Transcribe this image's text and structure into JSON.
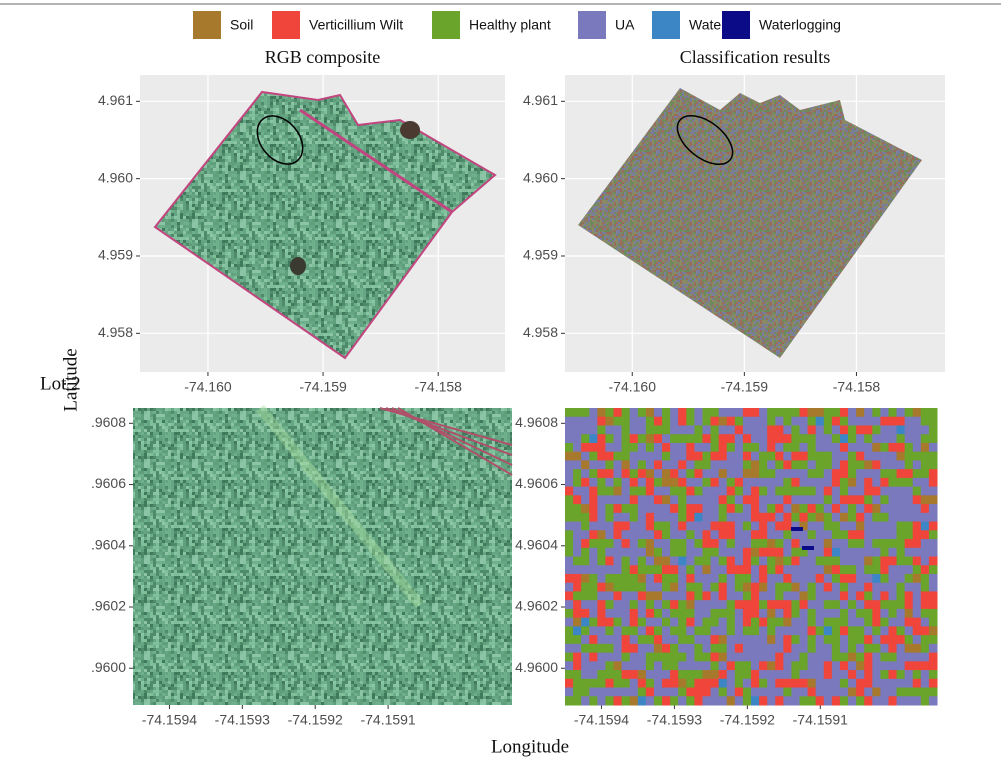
{
  "legend": [
    {
      "label": "Soil",
      "color": "#a7792c"
    },
    {
      "label": "Verticillium Wilt",
      "color": "#f0453a"
    },
    {
      "label": "Healthy plant",
      "color": "#6aa42a"
    },
    {
      "label": "UA",
      "color": "#7b79bd"
    },
    {
      "label": "Water",
      "color": "#3d86c6"
    },
    {
      "label": "Waterlogging",
      "color": "#0b0b88"
    }
  ],
  "side_label": "Lot 2",
  "y_label": "Latitude",
  "x_label": "Longitude",
  "panels": [
    {
      "title": "RGB composite",
      "grid": true,
      "xlim": [
        -74.16059,
        -74.15742
      ],
      "ylim": [
        4.9575,
        4.96134
      ],
      "xticks": [
        {
          "value": -74.16,
          "label": "-74.160"
        },
        -74.159,
        -74.158
      ],
      "yticks": [
        4.958,
        4.959,
        {
          "value": 4.96,
          "label": "4.960"
        },
        4.961
      ]
    },
    {
      "title": "Classification results",
      "grid": true,
      "xlim": [
        -74.1606,
        -74.15721
      ],
      "ylim": [
        4.9575,
        4.96134
      ],
      "xticks": [
        {
          "value": -74.16,
          "label": "-74.160"
        },
        -74.159,
        -74.158
      ],
      "yticks": [
        4.958,
        4.959,
        {
          "value": 4.96,
          "label": "4.960"
        },
        4.961
      ]
    },
    {
      "grid": false,
      "xlim": [
        -74.15945,
        -74.15893
      ],
      "ylim": [
        4.95988,
        4.96085
      ],
      "xticks": [
        -74.1594,
        -74.1593,
        -74.1592,
        -74.1591
      ],
      "yticks": [
        {
          "value": 4.96,
          "label": ".9600"
        },
        {
          "value": 4.9602,
          "label": ".9602"
        },
        {
          "value": 4.9604,
          "label": ".9604"
        },
        {
          "value": 4.9606,
          "label": ".9606"
        },
        {
          "value": 4.9608,
          "label": ".9608"
        }
      ]
    },
    {
      "grid": false,
      "xlim": [
        -74.15945,
        -74.15894
      ],
      "ylim": [
        4.95988,
        4.96085
      ],
      "xticks": [
        -74.1594,
        -74.1593,
        -74.1592,
        -74.1591
      ],
      "yticks": [
        {
          "value": 4.96,
          "label": "4.9600"
        },
        4.9602,
        4.9604,
        4.9606,
        4.9608
      ]
    }
  ]
}
